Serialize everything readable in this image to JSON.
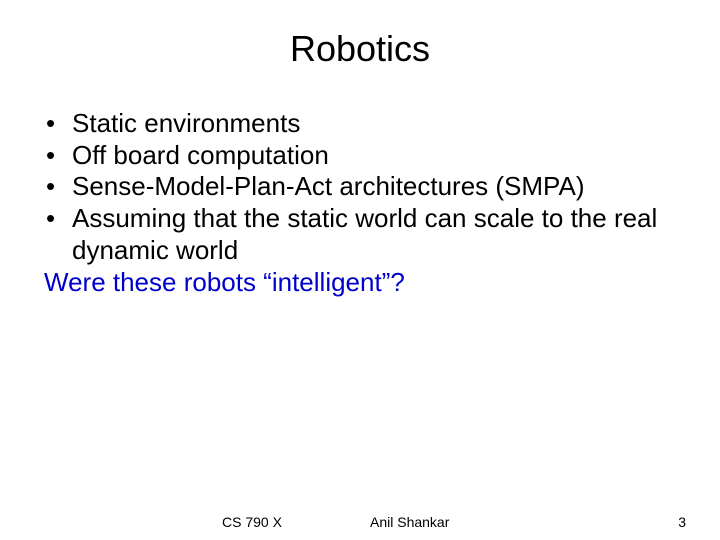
{
  "slide": {
    "title": "Robotics",
    "title_fontsize": 36,
    "title_color": "#000000",
    "body_fontsize": 26,
    "body_color": "#000000",
    "question_color": "#0000cc",
    "background_color": "#ffffff",
    "bullets": [
      "Static environments",
      "Off board computation",
      "Sense-Model-Plan-Act architectures (SMPA)",
      "Assuming that the static world can scale to the real dynamic world"
    ],
    "question": "Were these robots “intelligent”?",
    "footer": {
      "course": "CS 790 X",
      "author": "Anil Shankar",
      "page": "3",
      "fontsize": 14
    }
  }
}
